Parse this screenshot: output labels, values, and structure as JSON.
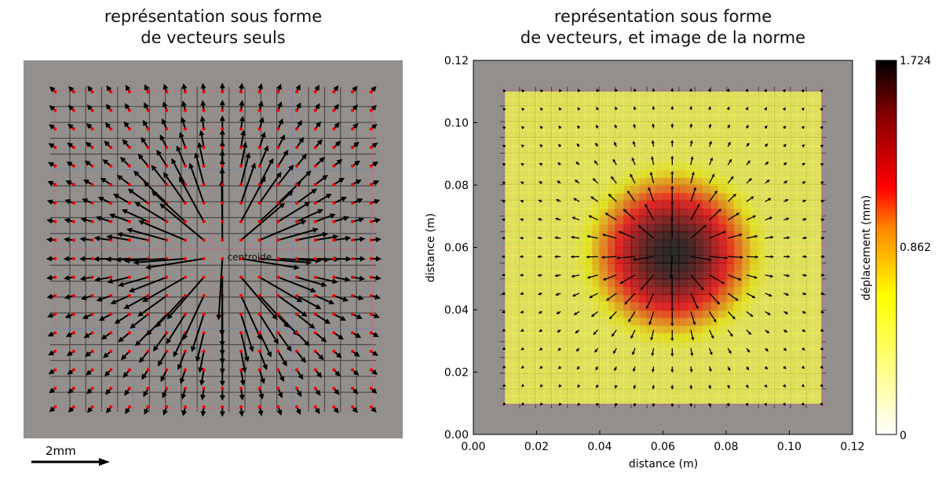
{
  "left_panel": {
    "title_line1": "représentation sous forme",
    "title_line2": "de vecteurs seuls",
    "centroid_label": "centroide",
    "scale_label": "2mm"
  },
  "chart_data": {
    "type": "quiver",
    "title_line1": "représentation sous forme",
    "title_line2": "de vecteurs, et image de la norme",
    "xlabel": "distance (m)",
    "ylabel": "distance (m)",
    "xlim": [
      0,
      0.12
    ],
    "ylim": [
      0,
      0.12
    ],
    "xticks": [
      "0.00",
      "0.02",
      "0.04",
      "0.06",
      "0.08",
      "0.10",
      "0.12"
    ],
    "yticks": [
      "0.00",
      "0.02",
      "0.04",
      "0.06",
      "0.08",
      "0.10",
      "0.12"
    ],
    "grid": false,
    "centroid": [
      0.063,
      0.058
    ],
    "vector_grid_range_m": [
      0.01,
      0.11
    ],
    "colorbar": {
      "label": "déplacement (mm)",
      "min": 0,
      "max": 1.724,
      "ticks": [
        "0",
        "0.862",
        "1.724"
      ],
      "colormap": "hot_r",
      "colors": [
        "#ffffff",
        "#ffff00",
        "#ff8800",
        "#ff0000",
        "#880000",
        "#000000"
      ]
    }
  }
}
